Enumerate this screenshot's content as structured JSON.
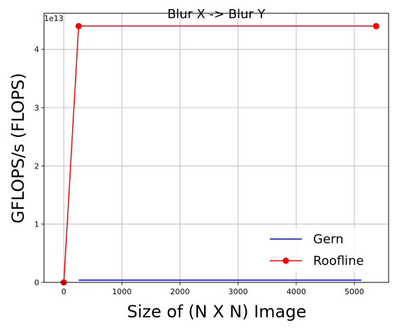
{
  "chart_data": {
    "type": "line",
    "title": "Blur X -> Blur Y",
    "xlabel": "Size of (N X N) Image",
    "ylabel": "GFLOPS/s (FLOPS)",
    "offset_text": "1e13",
    "xlim": [
      -340,
      5590
    ],
    "ylim": [
      0,
      4.62
    ],
    "y_scale_multiplier": 10000000000000.0,
    "xticks": [
      0,
      1000,
      2000,
      3000,
      4000,
      5000
    ],
    "xtick_labels": [
      "0",
      "1000",
      "2000",
      "3000",
      "4000",
      "5000"
    ],
    "yticks": [
      0,
      1,
      2,
      3,
      4
    ],
    "ytick_labels": [
      "0",
      "1",
      "2",
      "3",
      "4"
    ],
    "grid": true,
    "legend_position": "lower right",
    "series": [
      {
        "name": "Gern",
        "color": "#0000ff",
        "marker": "none",
        "x": [
          256,
          5120
        ],
        "y": [
          0.04,
          0.04
        ]
      },
      {
        "name": "Roofline",
        "color": "#ff0000",
        "marker": "circle",
        "x": [
          0,
          256,
          5376
        ],
        "y": [
          0,
          4.4,
          4.4
        ]
      }
    ]
  }
}
